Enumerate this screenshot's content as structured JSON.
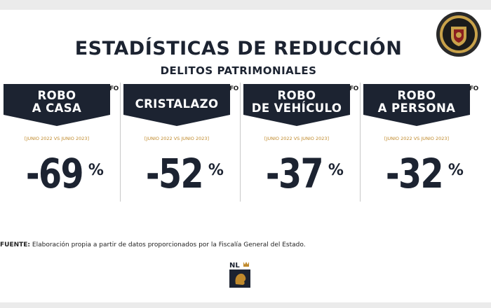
{
  "header": {
    "title": "ESTADÍSTICAS DE REDUCCIÓN",
    "subtitle": "DELITOS PATRIMONIALES"
  },
  "chart_data": {
    "type": "bar",
    "title": "ESTADÍSTICAS DE REDUCCIÓN",
    "subtitle": "DELITOS PATRIMONIALES",
    "categories": [
      "ROBO A CASA",
      "CRISTALAZO",
      "ROBO DE VEHÍCULO",
      "ROBO A PERSONA"
    ],
    "series": [
      {
        "values": [
          -69,
          -52,
          -37,
          -32
        ]
      }
    ],
    "unit": "%",
    "grid": false,
    "colors": {
      "banner": "#1c2331",
      "period": "#c08a2c",
      "text": "#1c2331"
    }
  },
  "panels": [
    {
      "label_lines": [
        "ROBO",
        "A CASA"
      ],
      "period": "[JUNIO 2022 VS JUNIO 2023]",
      "value": "-69",
      "unit": "%",
      "corner": "FO"
    },
    {
      "label_lines": [
        "CRISTALAZO"
      ],
      "period": "[JUNIO 2022 VS JUNIO 2023]",
      "value": "-52",
      "unit": "%",
      "corner": "FO"
    },
    {
      "label_lines": [
        "ROBO",
        "DE VEHÍCULO"
      ],
      "period": "[JUNIO 2022 VS JUNIO 2023]",
      "value": "-37",
      "unit": "%",
      "corner": "FO"
    },
    {
      "label_lines": [
        "ROBO",
        "A PERSONA"
      ],
      "period": "[JUNIO 2022 VS JUNIO 2023]",
      "value": "-32",
      "unit": "%",
      "corner": "FO"
    }
  ],
  "footer": {
    "source_label": "FUENTE:",
    "source_text": "Elaboración propia a partir de datos proporcionados por la Fiscalía General del Estado.",
    "logo_text": "NL"
  },
  "icons": {
    "top_right": "police-shield-icon",
    "bottom": "nuevo-leon-lion-icon"
  }
}
